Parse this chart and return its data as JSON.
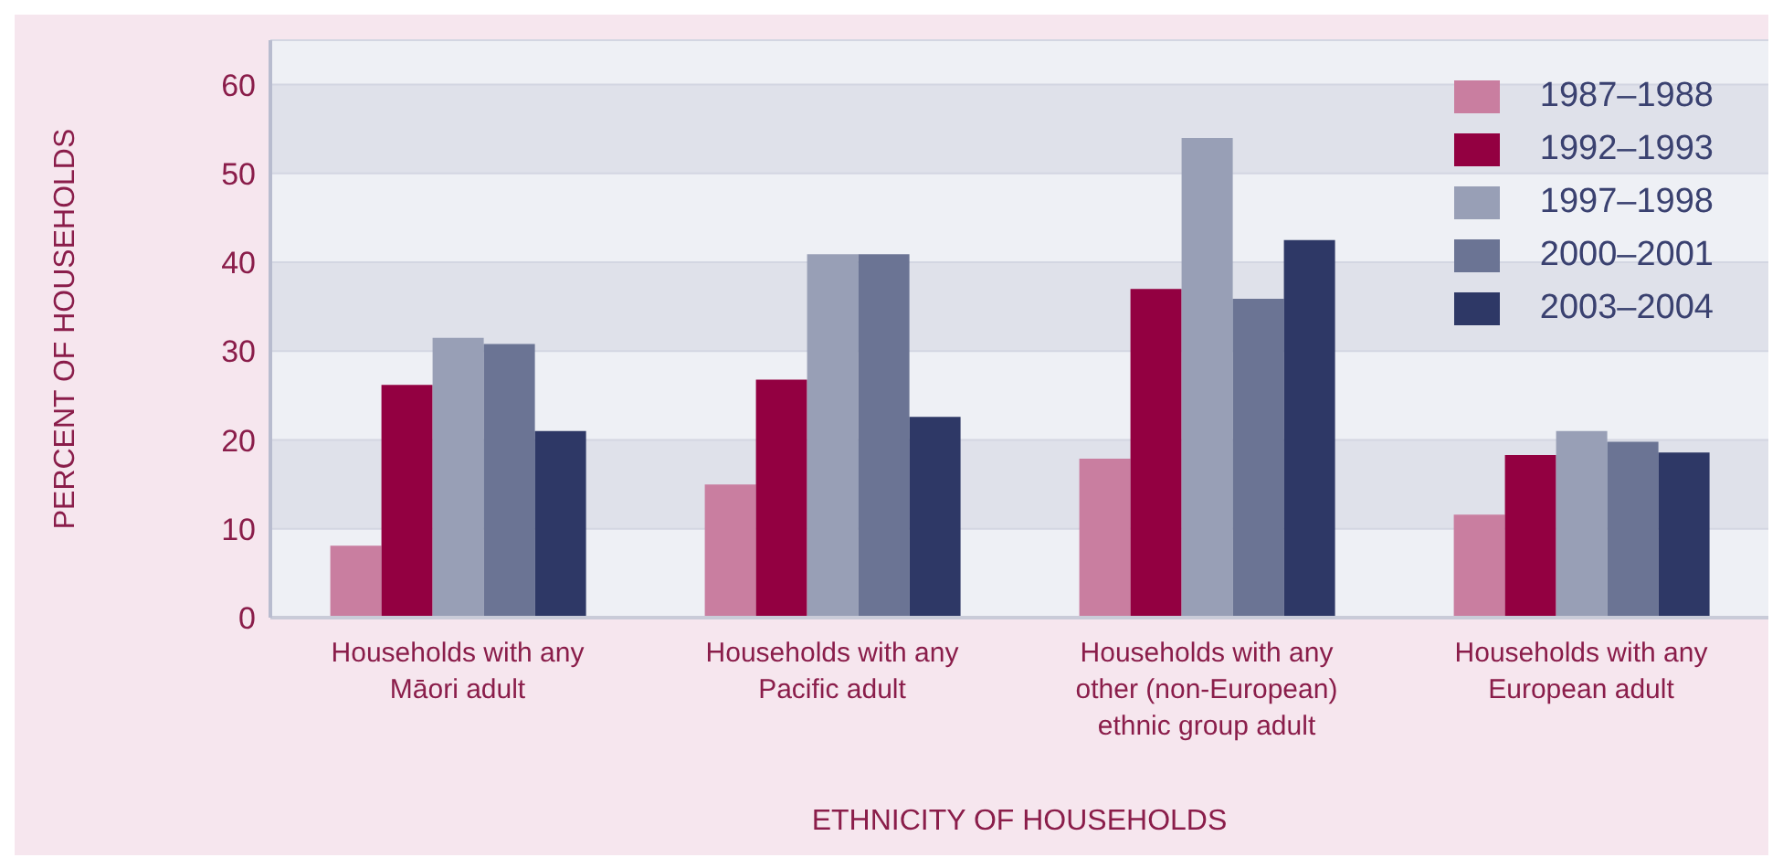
{
  "chart_data": {
    "type": "bar",
    "xlabel": "ETHNICITY OF HOUSEHOLDS",
    "ylabel": "PERCENT OF HOUSEHOLDS",
    "categories": [
      "Households with any Māori adult",
      "Households with any Pacific adult",
      "Households with any other (non-European) ethnic group adult",
      "Households with any European adult"
    ],
    "series": [
      {
        "name": "1987–1988",
        "color": "#c97ea0",
        "values": [
          8.1,
          15.0,
          17.9,
          11.6
        ]
      },
      {
        "name": "1992–1993",
        "color": "#930041",
        "values": [
          26.2,
          26.8,
          37.0,
          18.3
        ]
      },
      {
        "name": "1997–1998",
        "color": "#989fb6",
        "values": [
          31.5,
          40.9,
          54.0,
          21.0
        ]
      },
      {
        "name": "2000–2001",
        "color": "#6b7494",
        "values": [
          30.8,
          40.9,
          35.9,
          19.8
        ]
      },
      {
        "name": "2003–2004",
        "color": "#2e3866",
        "values": [
          21.0,
          22.6,
          42.5,
          18.6
        ]
      }
    ],
    "ylim": [
      0,
      65
    ],
    "yticks": [
      0,
      10,
      20,
      30,
      40,
      50,
      60
    ],
    "grid": "y",
    "legend": "top right"
  }
}
